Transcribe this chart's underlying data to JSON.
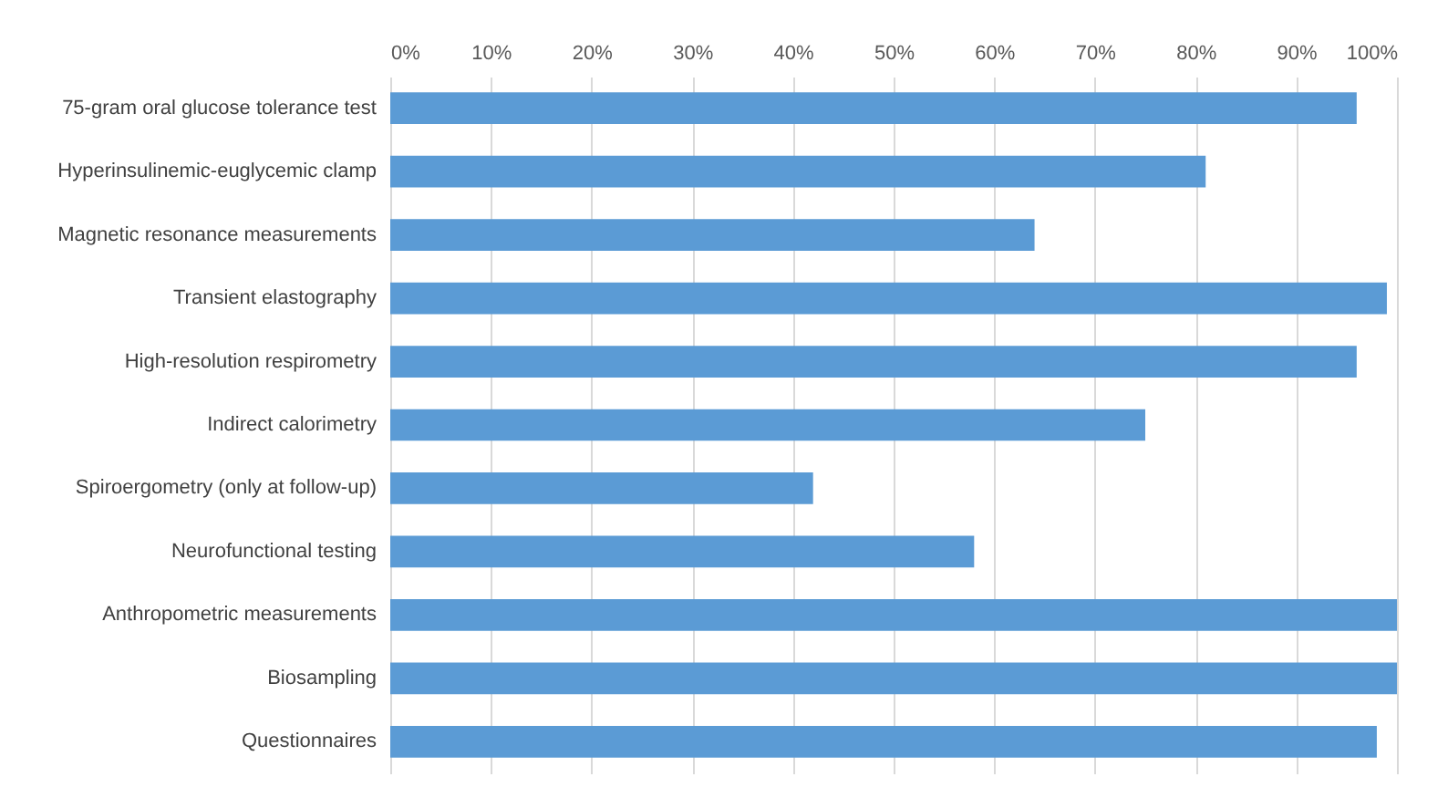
{
  "chart_data": {
    "type": "bar",
    "orientation": "horizontal",
    "categories": [
      "75-gram oral glucose tolerance test",
      "Hyperinsulinemic-euglycemic clamp",
      "Magnetic resonance measurements",
      "Transient elastography",
      "High-resolution respirometry",
      "Indirect calorimetry",
      "Spiroergometry (only at follow-up)",
      "Neurofunctional testing",
      "Anthropometric measurements",
      "Biosampling",
      "Questionnaires"
    ],
    "values": [
      96,
      81,
      64,
      99,
      96,
      75,
      42,
      58,
      100,
      100,
      98
    ],
    "color": "#5b9bd5",
    "xlim": [
      0,
      100
    ],
    "xticks": [
      {
        "value": 0,
        "label": "0%"
      },
      {
        "value": 10,
        "label": "10%"
      },
      {
        "value": 20,
        "label": "20%"
      },
      {
        "value": 30,
        "label": "30%"
      },
      {
        "value": 40,
        "label": "40%"
      },
      {
        "value": 50,
        "label": "50%"
      },
      {
        "value": 60,
        "label": "60%"
      },
      {
        "value": 70,
        "label": "70%"
      },
      {
        "value": 80,
        "label": "80%"
      },
      {
        "value": 90,
        "label": "90%"
      },
      {
        "value": 100,
        "label": "100%"
      }
    ],
    "grid": "x"
  }
}
